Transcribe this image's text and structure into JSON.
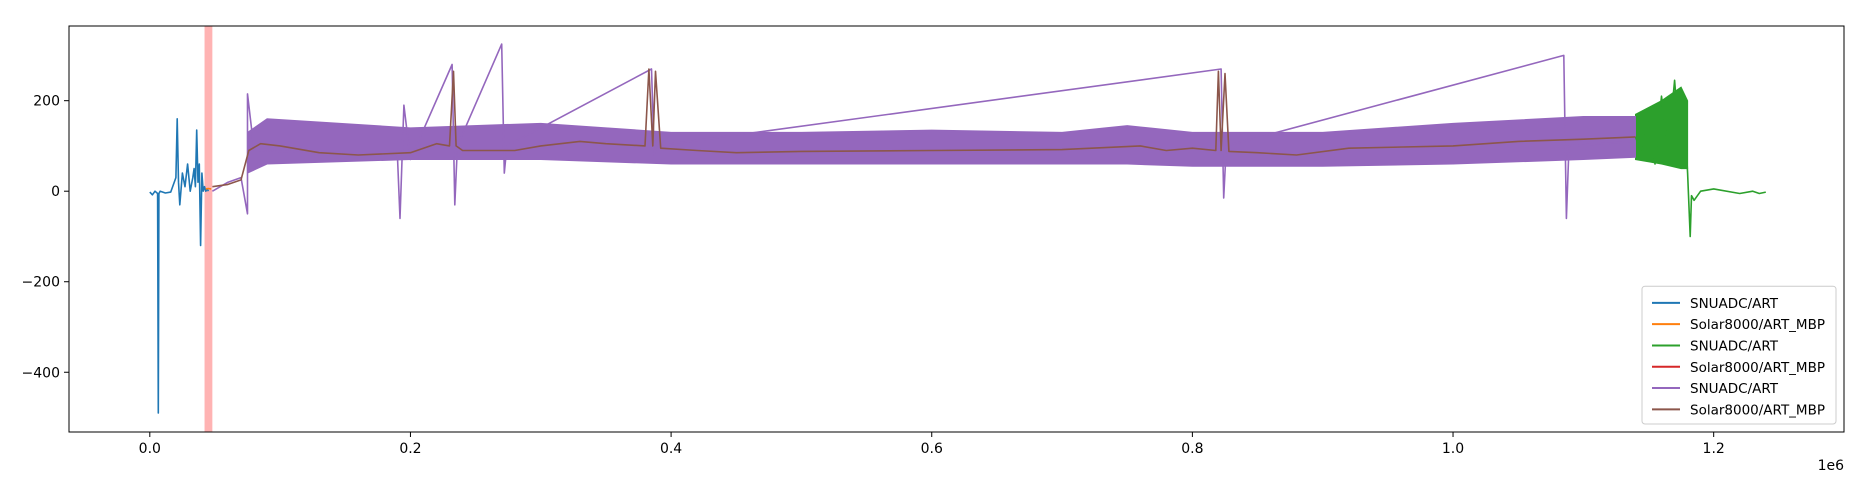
{
  "chart_data": {
    "type": "line",
    "title": "",
    "xlabel": "",
    "ylabel": "",
    "x_offset_text": "1e6",
    "xlim": [
      -0.062,
      1.3
    ],
    "ylim": [
      -532,
      365
    ],
    "x_ticks": [
      {
        "value": 0.0,
        "label": "0.0"
      },
      {
        "value": 0.2,
        "label": "0.2"
      },
      {
        "value": 0.4,
        "label": "0.4"
      },
      {
        "value": 0.6,
        "label": "0.6"
      },
      {
        "value": 0.8,
        "label": "0.8"
      },
      {
        "value": 1.0,
        "label": "1.0"
      },
      {
        "value": 1.2,
        "label": "1.2"
      }
    ],
    "y_ticks": [
      {
        "value": 200,
        "label": "200"
      },
      {
        "value": 0,
        "label": "0"
      },
      {
        "value": -200,
        "label": "−200"
      },
      {
        "value": -400,
        "label": "−400"
      }
    ],
    "highlight_span": {
      "x0": 0.042,
      "x1": 0.048,
      "color": "#ff9999"
    },
    "legend_position": "lower right",
    "series": [
      {
        "name": "SNUADC/ART",
        "color": "#1f77b4",
        "x": [
          0.0,
          0.002,
          0.004,
          0.006,
          0.0065,
          0.007,
          0.008,
          0.012,
          0.016,
          0.02,
          0.021,
          0.022,
          0.023,
          0.025,
          0.027,
          0.029,
          0.031,
          0.033,
          0.034,
          0.035,
          0.036,
          0.037,
          0.038,
          0.039,
          0.04,
          0.041,
          0.042,
          0.043,
          0.044,
          0.045
        ],
        "y": [
          -2,
          -8,
          0,
          -5,
          -490,
          -5,
          0,
          -4,
          -2,
          30,
          160,
          20,
          -30,
          40,
          10,
          60,
          0,
          30,
          50,
          10,
          135,
          20,
          60,
          -120,
          40,
          0,
          10,
          0,
          5,
          0
        ]
      },
      {
        "name": "Solar8000/ART_MBP",
        "color": "#ff7f0e",
        "x": [
          0.043,
          0.045,
          0.047
        ],
        "y": [
          5,
          6,
          5
        ]
      },
      {
        "name": "SNUADC/ART",
        "color": "#2ca02c",
        "x": [
          1.14,
          1.145,
          1.15,
          1.155,
          1.16,
          1.165,
          1.17,
          1.175,
          1.178,
          1.18,
          1.182,
          1.183,
          1.185,
          1.19,
          1.2,
          1.22,
          1.23,
          1.235,
          1.24
        ],
        "y": [
          120,
          80,
          170,
          60,
          210,
          90,
          245,
          60,
          150,
          40,
          -100,
          -10,
          -20,
          0,
          5,
          -5,
          0,
          -5,
          -2
        ],
        "band": [
          [
            1.14,
            70,
            170
          ],
          [
            1.16,
            60,
            200
          ],
          [
            1.175,
            50,
            230
          ],
          [
            1.18,
            50,
            200
          ]
        ]
      },
      {
        "name": "Solar8000/ART_MBP",
        "color": "#d62728",
        "x": [],
        "y": []
      },
      {
        "name": "SNUADC/ART",
        "color": "#9467bd",
        "x": [
          0.048,
          0.06,
          0.07,
          0.075,
          0.075,
          0.08,
          0.19,
          0.192,
          0.195,
          0.2,
          0.232,
          0.234,
          0.236,
          0.27,
          0.272,
          0.274,
          0.385,
          0.387,
          0.389,
          0.822,
          0.824,
          0.826,
          1.085,
          1.087,
          1.089,
          1.14
        ],
        "y": [
          0,
          20,
          30,
          -50,
          215,
          90,
          80,
          -60,
          190,
          70,
          280,
          -30,
          100,
          325,
          40,
          100,
          270,
          80,
          100,
          270,
          -15,
          100,
          300,
          -60,
          100,
          110
        ],
        "band": [
          [
            0.075,
            40,
            130
          ],
          [
            0.09,
            60,
            160
          ],
          [
            0.2,
            70,
            140
          ],
          [
            0.3,
            70,
            150
          ],
          [
            0.4,
            60,
            130
          ],
          [
            0.5,
            60,
            130
          ],
          [
            0.6,
            60,
            135
          ],
          [
            0.7,
            60,
            130
          ],
          [
            0.75,
            60,
            145
          ],
          [
            0.8,
            55,
            130
          ],
          [
            0.9,
            55,
            130
          ],
          [
            1.0,
            60,
            150
          ],
          [
            1.1,
            70,
            165
          ],
          [
            1.14,
            75,
            165
          ]
        ]
      },
      {
        "name": "Solar8000/ART_MBP",
        "color": "#8c564b",
        "x": [
          0.048,
          0.06,
          0.07,
          0.076,
          0.085,
          0.1,
          0.13,
          0.16,
          0.2,
          0.22,
          0.23,
          0.233,
          0.235,
          0.24,
          0.28,
          0.3,
          0.33,
          0.35,
          0.38,
          0.383,
          0.386,
          0.388,
          0.392,
          0.42,
          0.45,
          0.5,
          0.6,
          0.7,
          0.76,
          0.78,
          0.8,
          0.818,
          0.82,
          0.822,
          0.825,
          0.828,
          0.85,
          0.88,
          0.92,
          1.0,
          1.05,
          1.1,
          1.14
        ],
        "y": [
          10,
          15,
          25,
          90,
          105,
          100,
          85,
          80,
          85,
          105,
          100,
          265,
          100,
          90,
          90,
          100,
          110,
          105,
          100,
          270,
          100,
          265,
          95,
          90,
          85,
          88,
          90,
          92,
          100,
          90,
          95,
          90,
          265,
          90,
          260,
          88,
          85,
          80,
          95,
          100,
          110,
          115,
          120
        ]
      }
    ]
  }
}
